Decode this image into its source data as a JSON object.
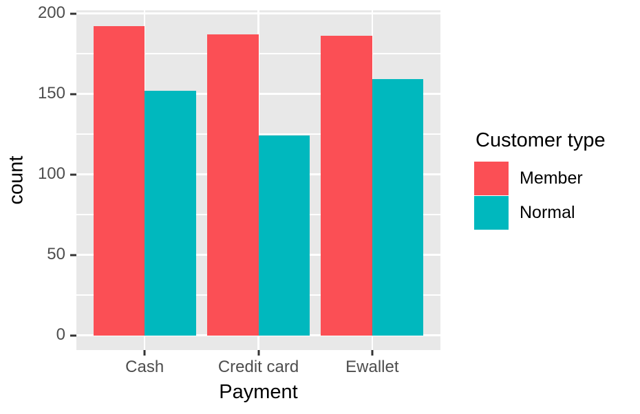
{
  "chart_data": {
    "type": "bar",
    "position": "dodge",
    "title": "",
    "xlabel": "Payment",
    "ylabel": "count",
    "categories": [
      "Cash",
      "Credit card",
      "Ewallet"
    ],
    "series": [
      {
        "name": "Member",
        "color": "#FB4F55",
        "values": [
          192,
          187,
          186
        ]
      },
      {
        "name": "Normal",
        "color": "#00B8BE",
        "values": [
          152,
          124,
          159
        ]
      }
    ],
    "legend_title": "Customer type",
    "legend_position": "right",
    "ylim": [
      0,
      200
    ],
    "yticks": [
      0,
      50,
      100,
      150,
      200
    ],
    "yticks_minor": [
      25,
      75,
      125,
      175
    ],
    "grid": true,
    "style": {
      "panel_background": "#E8E8E8",
      "gridline_color": "#FFFFFF",
      "tick_mark_color": "#333333",
      "tick_label_color": "#4D4D4D",
      "axis_title_color": "#000000"
    }
  }
}
